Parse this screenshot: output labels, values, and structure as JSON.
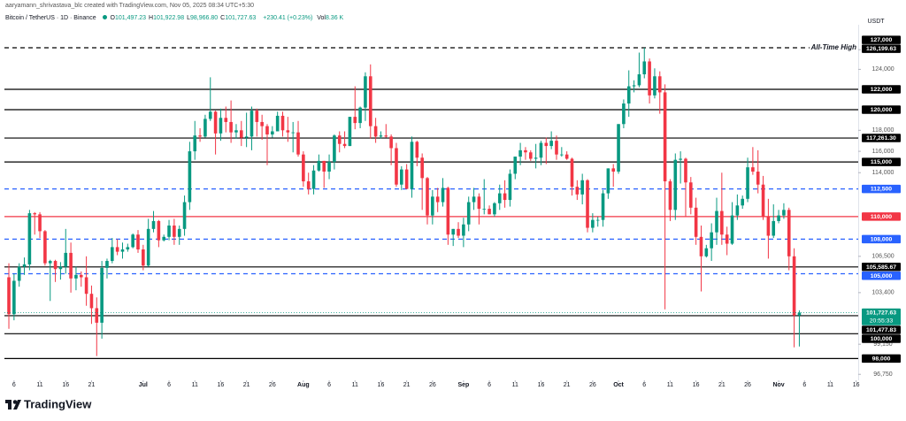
{
  "header": {
    "credit": "aaryamann_shrivastava_blc created with TradingView.com, Nov 05, 2025 08:34 UTC+5:30",
    "symbol": "Bitcoin / TetherUS · 1D · Binance",
    "ohlc": [
      {
        "key": "O",
        "value": "101,497.23"
      },
      {
        "key": "H",
        "value": "101,922.98"
      },
      {
        "key": "L",
        "value": "98,966.80"
      },
      {
        "key": "C",
        "value": "101,727.63"
      }
    ],
    "change": "+230.41 (+0.23%)",
    "volume_key": "Vol",
    "volume": "8.36 K"
  },
  "footer": {
    "brand": "TradingView"
  },
  "chart_data": {
    "type": "candlestick",
    "currency": "USDT",
    "log_scale": true,
    "up_color": "#089981",
    "down_color": "#f23645",
    "xlim": [
      -0.86,
      164.4
    ],
    "ylim": [
      96280,
      128580
    ],
    "xticks": [
      {
        "value": 1,
        "label": "6"
      },
      {
        "value": 6,
        "label": "11"
      },
      {
        "value": 11,
        "label": "16"
      },
      {
        "value": 16,
        "label": "21"
      },
      {
        "value": 26,
        "label": "Jul"
      },
      {
        "value": 31,
        "label": "6"
      },
      {
        "value": 36,
        "label": "11"
      },
      {
        "value": 41,
        "label": "16"
      },
      {
        "value": 46,
        "label": "21"
      },
      {
        "value": 51,
        "label": "26"
      },
      {
        "value": 57,
        "label": "Aug"
      },
      {
        "value": 62,
        "label": "6"
      },
      {
        "value": 67,
        "label": "11"
      },
      {
        "value": 72,
        "label": "16"
      },
      {
        "value": 77,
        "label": "21"
      },
      {
        "value": 82,
        "label": "26"
      },
      {
        "value": 88,
        "label": "Sep"
      },
      {
        "value": 93,
        "label": "6"
      },
      {
        "value": 98,
        "label": "11"
      },
      {
        "value": 103,
        "label": "16"
      },
      {
        "value": 108,
        "label": "21"
      },
      {
        "value": 113,
        "label": "26"
      },
      {
        "value": 118,
        "label": "Oct"
      },
      {
        "value": 123,
        "label": "6"
      },
      {
        "value": 128,
        "label": "11"
      },
      {
        "value": 133,
        "label": "16"
      },
      {
        "value": 138,
        "label": "21"
      },
      {
        "value": 143,
        "label": "26"
      },
      {
        "value": 149,
        "label": "Nov"
      },
      {
        "value": 154,
        "label": "6"
      },
      {
        "value": 159,
        "label": "11"
      },
      {
        "value": 164,
        "label": "16"
      }
    ],
    "yticks": [
      {
        "value": 126000,
        "label": "126,000"
      },
      {
        "value": 124000,
        "label": "124,000"
      },
      {
        "value": 118000,
        "label": "118,000"
      },
      {
        "value": 116000,
        "label": "116,000"
      },
      {
        "value": 114000,
        "label": "114,000"
      },
      {
        "value": 106500,
        "label": "106,500"
      },
      {
        "value": 103400,
        "label": "103,400"
      },
      {
        "value": 99150,
        "label": "99,150"
      },
      {
        "value": 96750,
        "label": "96,750"
      }
    ],
    "levels": [
      {
        "value": 127000,
        "label": "127,000",
        "color": "#000000",
        "line": false
      },
      {
        "value": 126199.63,
        "label": "126,199.63",
        "color": "#000000",
        "dashed": true,
        "annotation": "All-Time High"
      },
      {
        "value": 122000,
        "label": "122,000",
        "color": "#000000"
      },
      {
        "value": 120000,
        "label": "120,000",
        "color": "#000000"
      },
      {
        "value": 117261.3,
        "label": "117,261.30",
        "color": "#000000"
      },
      {
        "value": 115000,
        "label": "115,000",
        "color": "#000000"
      },
      {
        "value": 112500,
        "label": "112,500",
        "color": "#2962ff",
        "dashed": true
      },
      {
        "value": 110000,
        "label": "110,000",
        "color": "#f23645"
      },
      {
        "value": 108000,
        "label": "108,000",
        "color": "#2962ff",
        "dashed": true
      },
      {
        "value": 105585.67,
        "label": "105,585.67",
        "color": "#000000"
      },
      {
        "value": 105000,
        "label": "105,000",
        "color": "#2962ff",
        "dashed": true
      },
      {
        "value": 101477.83,
        "label": "101,477.83",
        "color": "#000000"
      },
      {
        "value": 100000,
        "label": "100,000",
        "color": "#000000"
      },
      {
        "value": 98000,
        "label": "98,000",
        "color": "#000000"
      }
    ],
    "current_price": {
      "value": 101727.63,
      "label": "101,727.63",
      "countdown": "20:55:33",
      "color": "#089981"
    },
    "candles": [
      [
        104700,
        105900,
        100400,
        101600
      ],
      [
        101600,
        105000,
        101100,
        104400
      ],
      [
        104400,
        105900,
        103900,
        105600
      ],
      [
        105600,
        106400,
        104900,
        105800
      ],
      [
        105800,
        110600,
        105300,
        110300
      ],
      [
        110300,
        110400,
        108400,
        110200
      ],
      [
        110200,
        110400,
        108100,
        108700
      ],
      [
        108700,
        108800,
        105700,
        105900
      ],
      [
        105900,
        106200,
        102700,
        106100
      ],
      [
        106100,
        106200,
        104300,
        105400
      ],
      [
        105400,
        106000,
        104500,
        105600
      ],
      [
        105600,
        108900,
        105000,
        106800
      ],
      [
        106800,
        107700,
        103400,
        104600
      ],
      [
        104600,
        105600,
        103600,
        104900
      ],
      [
        104900,
        105200,
        103900,
        104700
      ],
      [
        104700,
        106500,
        102300,
        103300
      ],
      [
        103300,
        104000,
        100800,
        102100
      ],
      [
        102100,
        103000,
        98200,
        100900
      ],
      [
        100900,
        106100,
        99600,
        105500
      ],
      [
        105500,
        106300,
        104600,
        106100
      ],
      [
        106100,
        108100,
        105900,
        107300
      ],
      [
        107300,
        108000,
        106600,
        106900
      ],
      [
        106900,
        107700,
        106300,
        107100
      ],
      [
        107100,
        107600,
        106900,
        107300
      ],
      [
        107300,
        108500,
        107200,
        108400
      ],
      [
        108400,
        108800,
        106800,
        107100
      ],
      [
        107100,
        107500,
        105300,
        105700
      ],
      [
        105700,
        109800,
        105600,
        108900
      ],
      [
        108900,
        110500,
        108600,
        109600
      ],
      [
        109600,
        109700,
        107300,
        107900
      ],
      [
        107900,
        108400,
        107800,
        108200
      ],
      [
        108200,
        109700,
        107900,
        109200
      ],
      [
        109200,
        109800,
        107500,
        108200
      ],
      [
        108200,
        109200,
        107500,
        108900
      ],
      [
        108900,
        111900,
        108300,
        111300
      ],
      [
        111300,
        116900,
        110600,
        116000
      ],
      [
        116000,
        118900,
        115200,
        117500
      ],
      [
        117500,
        118200,
        116900,
        117400
      ],
      [
        117400,
        119500,
        117300,
        119100
      ],
      [
        119100,
        123200,
        118900,
        119800
      ],
      [
        119800,
        119900,
        115700,
        117700
      ],
      [
        117700,
        120100,
        117000,
        119200
      ],
      [
        119200,
        120300,
        117800,
        118800
      ],
      [
        118800,
        120900,
        116800,
        117800
      ],
      [
        117800,
        118600,
        117200,
        118000
      ],
      [
        118000,
        118900,
        116500,
        117300
      ],
      [
        117300,
        119700,
        116400,
        117400
      ],
      [
        117400,
        120300,
        116100,
        119900
      ],
      [
        119900,
        120100,
        117400,
        118800
      ],
      [
        118800,
        119500,
        117100,
        118400
      ],
      [
        118400,
        118600,
        114700,
        117600
      ],
      [
        117600,
        118400,
        117300,
        117900
      ],
      [
        117900,
        119800,
        117900,
        119400
      ],
      [
        119400,
        119800,
        117400,
        118000
      ],
      [
        118000,
        119300,
        116900,
        117800
      ],
      [
        117800,
        118800,
        115900,
        117800
      ],
      [
        117800,
        118900,
        115500,
        115700
      ],
      [
        115700,
        116000,
        112700,
        113200
      ],
      [
        113200,
        114000,
        112000,
        112500
      ],
      [
        112500,
        114700,
        112000,
        114200
      ],
      [
        114200,
        115700,
        114100,
        115100
      ],
      [
        115100,
        115100,
        112600,
        114100
      ],
      [
        114100,
        115700,
        113400,
        115000
      ],
      [
        115000,
        117600,
        114300,
        117500
      ],
      [
        117500,
        117900,
        115900,
        116700
      ],
      [
        116700,
        117900,
        116300,
        116500
      ],
      [
        116500,
        119300,
        116500,
        119300
      ],
      [
        119300,
        122300,
        118100,
        118700
      ],
      [
        118700,
        120300,
        118200,
        120200
      ],
      [
        120200,
        123700,
        118900,
        123300
      ],
      [
        123300,
        124500,
        117200,
        118400
      ],
      [
        118400,
        119200,
        116800,
        117400
      ],
      [
        117400,
        117900,
        117200,
        117500
      ],
      [
        117500,
        118600,
        117300,
        117400
      ],
      [
        117400,
        117600,
        114700,
        116300
      ],
      [
        116300,
        116800,
        112700,
        112900
      ],
      [
        112900,
        114600,
        112400,
        114300
      ],
      [
        114300,
        114800,
        112600,
        112500
      ],
      [
        112500,
        117400,
        111700,
        116900
      ],
      [
        116900,
        117000,
        114600,
        115400
      ],
      [
        115400,
        115800,
        110600,
        113500
      ],
      [
        113500,
        113600,
        109300,
        110100
      ],
      [
        110100,
        112400,
        109300,
        111800
      ],
      [
        111800,
        112600,
        110400,
        111300
      ],
      [
        111300,
        113500,
        110900,
        112600
      ],
      [
        112600,
        112700,
        107500,
        108400
      ],
      [
        108400,
        108900,
        107400,
        108900
      ],
      [
        108900,
        109500,
        108100,
        108300
      ],
      [
        108300,
        109900,
        107300,
        109300
      ],
      [
        109300,
        111800,
        108700,
        111300
      ],
      [
        111300,
        112600,
        110600,
        111800
      ],
      [
        111800,
        112100,
        109300,
        110700
      ],
      [
        110700,
        113400,
        110200,
        110700
      ],
      [
        110700,
        111000,
        110200,
        110200
      ],
      [
        110200,
        111300,
        110000,
        111200
      ],
      [
        111200,
        112900,
        110600,
        112100
      ],
      [
        112100,
        113300,
        110800,
        111500
      ],
      [
        111500,
        114300,
        110900,
        113900
      ],
      [
        113900,
        115500,
        113400,
        115500
      ],
      [
        115500,
        116800,
        114700,
        116100
      ],
      [
        116100,
        116400,
        115200,
        115900
      ],
      [
        115900,
        116100,
        115100,
        115300
      ],
      [
        115300,
        116700,
        114400,
        115400
      ],
      [
        115400,
        117000,
        114700,
        116800
      ],
      [
        116800,
        117300,
        114800,
        116500
      ],
      [
        116500,
        117900,
        116200,
        117000
      ],
      [
        117000,
        117500,
        115200,
        115700
      ],
      [
        115700,
        116400,
        115500,
        115700
      ],
      [
        115700,
        116000,
        115200,
        115300
      ],
      [
        115300,
        115400,
        111900,
        112700
      ],
      [
        112700,
        113300,
        111500,
        112000
      ],
      [
        112000,
        113900,
        111100,
        113300
      ],
      [
        113300,
        113400,
        108600,
        109000
      ],
      [
        109000,
        110300,
        108600,
        109700
      ],
      [
        109700,
        110000,
        109100,
        109700
      ],
      [
        109700,
        112400,
        109100,
        112100
      ],
      [
        112100,
        114400,
        111600,
        114400
      ],
      [
        114400,
        114800,
        112700,
        114100
      ],
      [
        114100,
        118600,
        113900,
        118600
      ],
      [
        118600,
        121000,
        118200,
        120600
      ],
      [
        120600,
        123900,
        119300,
        122300
      ],
      [
        122300,
        122900,
        121700,
        122400
      ],
      [
        122400,
        125700,
        122200,
        123500
      ],
      [
        123500,
        126200,
        123100,
        124800
      ],
      [
        124800,
        125100,
        120600,
        121400
      ],
      [
        121400,
        124100,
        121100,
        123300
      ],
      [
        123300,
        123800,
        119600,
        121700
      ],
      [
        121700,
        122500,
        102000,
        113200
      ],
      [
        113200,
        113400,
        109600,
        110600
      ],
      [
        110600,
        115800,
        109700,
        115200
      ],
      [
        115200,
        116000,
        113000,
        115300
      ],
      [
        115300,
        115400,
        110000,
        113100
      ],
      [
        113100,
        113600,
        110200,
        110800
      ],
      [
        110800,
        111700,
        107500,
        108200
      ],
      [
        108200,
        109200,
        103500,
        106500
      ],
      [
        106500,
        107500,
        106400,
        107200
      ],
      [
        107200,
        109400,
        106100,
        108600
      ],
      [
        108600,
        111700,
        107500,
        110500
      ],
      [
        110500,
        114000,
        107500,
        108400
      ],
      [
        108400,
        109100,
        106600,
        107600
      ],
      [
        107600,
        111300,
        107500,
        110100
      ],
      [
        110100,
        112000,
        109700,
        111000
      ],
      [
        111000,
        111900,
        110700,
        111600
      ],
      [
        111600,
        115400,
        111300,
        114500
      ],
      [
        114500,
        116400,
        113800,
        114100
      ],
      [
        114100,
        116100,
        112100,
        112900
      ],
      [
        112900,
        113700,
        109700,
        110000
      ],
      [
        110000,
        111600,
        106300,
        108300
      ],
      [
        108300,
        111100,
        108100,
        109600
      ],
      [
        109600,
        110600,
        109400,
        110100
      ],
      [
        110100,
        111200,
        109800,
        110600
      ],
      [
        110600,
        110800,
        105300,
        106500
      ],
      [
        106500,
        107200,
        98900,
        101497.23
      ],
      [
        101497.23,
        101922.98,
        98966.8,
        101727.63
      ]
    ]
  }
}
